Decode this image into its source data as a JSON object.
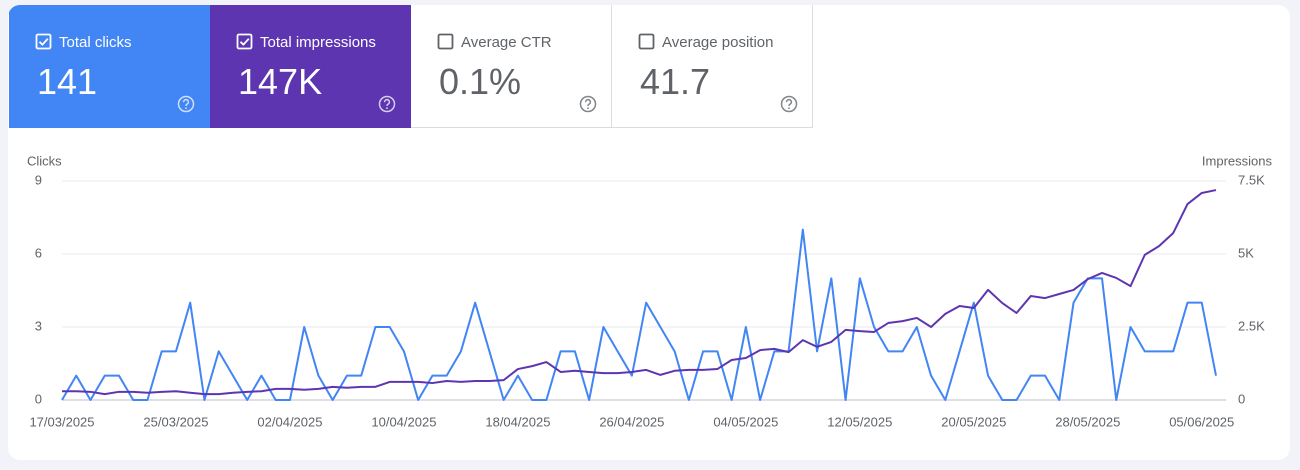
{
  "metrics": [
    {
      "label": "Total clicks",
      "value": "141",
      "checked": true,
      "color": "#4285f4"
    },
    {
      "label": "Total impressions",
      "value": "147K",
      "checked": true,
      "color": "#5e35b1"
    },
    {
      "label": "Average CTR",
      "value": "0.1%",
      "checked": false
    },
    {
      "label": "Average position",
      "value": "41.7",
      "checked": false
    }
  ],
  "chart_data": {
    "type": "line",
    "ylabel": "Clicks",
    "y2label": "Impressions",
    "categories": [
      "17/03/2025",
      null,
      null,
      null,
      null,
      null,
      null,
      null,
      "25/03/2025",
      null,
      null,
      null,
      null,
      null,
      null,
      null,
      "02/04/2025",
      null,
      null,
      null,
      null,
      null,
      null,
      null,
      "10/04/2025",
      null,
      null,
      null,
      null,
      null,
      null,
      null,
      "18/04/2025",
      null,
      null,
      null,
      null,
      null,
      null,
      null,
      "26/04/2025",
      null,
      null,
      null,
      null,
      null,
      null,
      null,
      "04/05/2025",
      null,
      null,
      null,
      null,
      null,
      null,
      null,
      "12/05/2025",
      null,
      null,
      null,
      null,
      null,
      null,
      null,
      "20/05/2025",
      null,
      null,
      null,
      null,
      null,
      null,
      null,
      "28/05/2025",
      null,
      null,
      null,
      null,
      null,
      null,
      null,
      "05/06/2025",
      null
    ],
    "series": [
      {
        "name": "Clicks",
        "color": "#4285f4",
        "axis": "y",
        "values": [
          0,
          1,
          0,
          1,
          1,
          0,
          0,
          2,
          2,
          4,
          0,
          2,
          1,
          0,
          1,
          0,
          0,
          3,
          1,
          0,
          1,
          1,
          3,
          3,
          2,
          0,
          1,
          1,
          2,
          4,
          2,
          0,
          1,
          0,
          0,
          2,
          2,
          0,
          3,
          2,
          1,
          4,
          3,
          2,
          0,
          2,
          2,
          0,
          3,
          0,
          2,
          2,
          7,
          2,
          5,
          0,
          5,
          3,
          2,
          2,
          3,
          1,
          0,
          2,
          4,
          1,
          0,
          0,
          1,
          1,
          0,
          4,
          5,
          5,
          0,
          3,
          2,
          2,
          2,
          4,
          4,
          1
        ]
      },
      {
        "name": "Impressions",
        "color": "#5e35b1",
        "axis": "y2",
        "values": [
          300,
          300,
          280,
          200,
          280,
          280,
          250,
          280,
          300,
          250,
          200,
          200,
          250,
          280,
          300,
          380,
          380,
          350,
          380,
          450,
          420,
          450,
          450,
          620,
          620,
          620,
          580,
          650,
          620,
          650,
          650,
          680,
          1060,
          1160,
          1300,
          960,
          1000,
          960,
          920,
          920,
          960,
          1030,
          860,
          1000,
          1030,
          1030,
          1060,
          1370,
          1440,
          1710,
          1750,
          1640,
          2050,
          1820,
          1990,
          2400,
          2360,
          2330,
          2640,
          2700,
          2810,
          2500,
          2950,
          3220,
          3150,
          3770,
          3320,
          2980,
          3560,
          3490,
          3630,
          3770,
          4140,
          4350,
          4180,
          3900,
          4970,
          5270,
          5720,
          6710,
          7090,
          7190
        ]
      }
    ],
    "ylim": [
      0,
      9
    ],
    "yticks": [
      0,
      3,
      6,
      9
    ],
    "y2lim": [
      0,
      7500
    ],
    "y2ticks": [
      0,
      {
        "value": 2500,
        "label": "2.5K"
      },
      {
        "value": 5000,
        "label": "5K"
      },
      {
        "value": 7500,
        "label": "7.5K"
      }
    ],
    "grid": true
  }
}
